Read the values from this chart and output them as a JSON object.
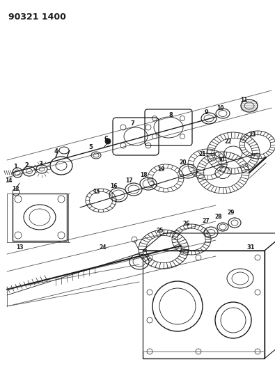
{
  "title": "90321 1400",
  "bg_color": "#ffffff",
  "fig_width": 3.95,
  "fig_height": 5.33,
  "dpi": 100,
  "lc": "#1a1a1a",
  "lw_main": 0.8,
  "lw_thin": 0.5,
  "lw_thick": 1.2,
  "label_fs": 6.5
}
